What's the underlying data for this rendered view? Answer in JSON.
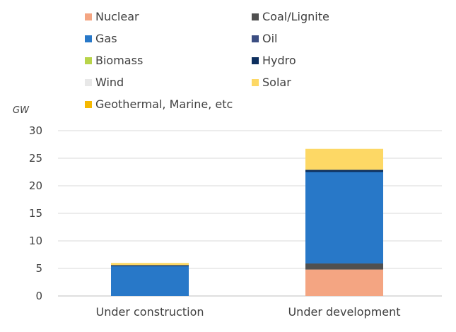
{
  "chart_data": {
    "type": "bar",
    "stacked": true,
    "categories": [
      "Under construction",
      "Under development"
    ],
    "ylabel": "GW",
    "ylim": [
      0,
      30
    ],
    "yticks": [
      0,
      5,
      10,
      15,
      20,
      25,
      30
    ],
    "grid": true,
    "legend_position": "top",
    "series": [
      {
        "name": "Nuclear",
        "color": "#f4a582",
        "values": [
          0,
          4.8
        ]
      },
      {
        "name": "Coal/Lignite",
        "color": "#505050",
        "values": [
          0,
          1.1
        ]
      },
      {
        "name": "Gas",
        "color": "#2878c8",
        "values": [
          5.4,
          16.6
        ]
      },
      {
        "name": "Oil",
        "color": "#3c4e82",
        "values": [
          0,
          0
        ]
      },
      {
        "name": "Biomass",
        "color": "#b8d44a",
        "values": [
          0,
          0
        ]
      },
      {
        "name": "Hydro",
        "color": "#0d2f5e",
        "values": [
          0.2,
          0.4
        ]
      },
      {
        "name": "Wind",
        "color": "#e8e8e8",
        "values": [
          0,
          0
        ]
      },
      {
        "name": "Solar",
        "color": "#fdd865",
        "values": [
          0.4,
          3.8
        ]
      },
      {
        "name": "Geothermal, Marine, etc",
        "color": "#f5b800",
        "values": [
          0,
          0
        ]
      }
    ]
  }
}
